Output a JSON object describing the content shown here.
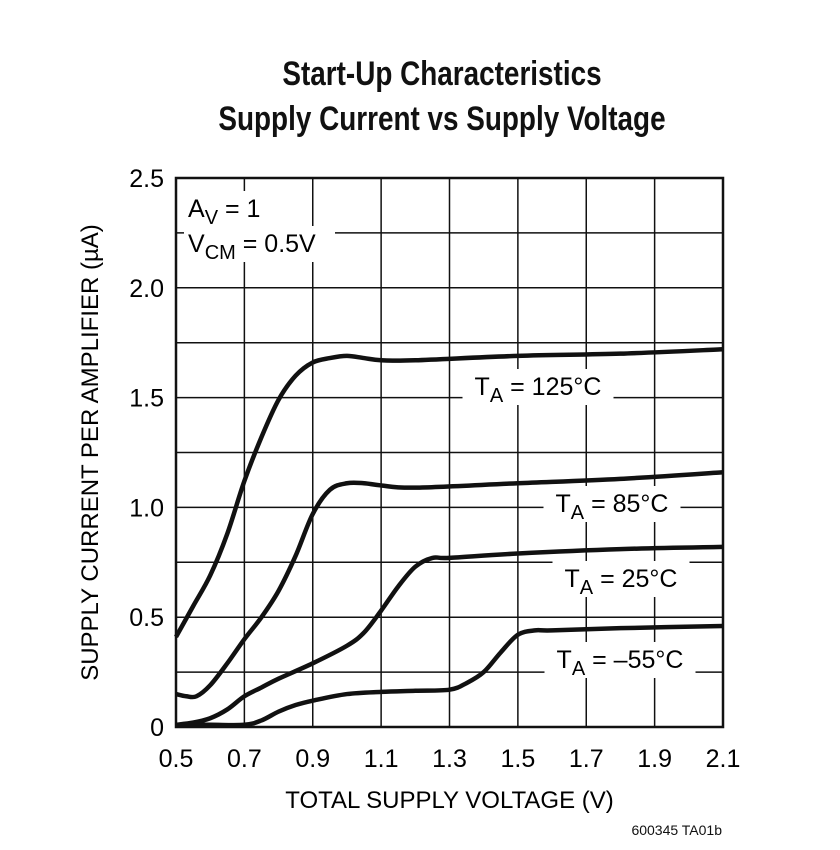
{
  "chart_data": {
    "type": "line",
    "title": "Start-Up Characteristics",
    "subtitle": "Supply Current vs Supply Voltage",
    "xlabel": "TOTAL SUPPLY VOLTAGE (V)",
    "ylabel": "SUPPLY CURRENT PER AMPLIFIER (µA)",
    "xlim": [
      0.5,
      2.1
    ],
    "ylim": [
      0,
      2.5
    ],
    "xticks": [
      "0.5",
      "0.7",
      "0.9",
      "1.1",
      "1.3",
      "1.5",
      "1.7",
      "1.9",
      "2.1"
    ],
    "yticks": [
      "0",
      "0.5",
      "1.0",
      "1.5",
      "2.0",
      "2.5"
    ],
    "grid": true,
    "conditions": {
      "av": {
        "main": "A",
        "sub": "V",
        "rest": " = 1"
      },
      "vcm": {
        "main": "V",
        "sub": "CM",
        "rest": " = 0.5V"
      }
    },
    "series": [
      {
        "name": "TA = 125°C",
        "label": {
          "main": "T",
          "sub": "A",
          "rest": " = 125°C"
        },
        "x": [
          0.5,
          0.55,
          0.6,
          0.65,
          0.7,
          0.75,
          0.8,
          0.85,
          0.9,
          0.95,
          1.0,
          1.05,
          1.1,
          1.2,
          1.5,
          1.8,
          2.1
        ],
        "y": [
          0.41,
          0.55,
          0.69,
          0.88,
          1.12,
          1.32,
          1.49,
          1.6,
          1.66,
          1.68,
          1.69,
          1.68,
          1.67,
          1.67,
          1.69,
          1.7,
          1.72
        ]
      },
      {
        "name": "TA = 85°C",
        "label": {
          "main": "T",
          "sub": "A",
          "rest": " = 85°C"
        },
        "x": [
          0.5,
          0.53,
          0.56,
          0.6,
          0.65,
          0.7,
          0.75,
          0.8,
          0.85,
          0.9,
          0.95,
          1.0,
          1.05,
          1.1,
          1.2,
          1.5,
          1.8,
          2.1
        ],
        "y": [
          0.15,
          0.14,
          0.14,
          0.19,
          0.29,
          0.4,
          0.5,
          0.62,
          0.78,
          0.97,
          1.08,
          1.11,
          1.11,
          1.1,
          1.09,
          1.11,
          1.13,
          1.16
        ]
      },
      {
        "name": "TA = 25°C",
        "label": {
          "main": "T",
          "sub": "A",
          "rest": " = 25°C"
        },
        "x": [
          0.5,
          0.55,
          0.6,
          0.65,
          0.7,
          0.75,
          0.8,
          0.9,
          1.0,
          1.05,
          1.1,
          1.15,
          1.2,
          1.25,
          1.3,
          1.5,
          1.8,
          2.1
        ],
        "y": [
          0.01,
          0.02,
          0.04,
          0.08,
          0.14,
          0.18,
          0.22,
          0.29,
          0.37,
          0.43,
          0.53,
          0.64,
          0.73,
          0.77,
          0.77,
          0.79,
          0.81,
          0.82
        ]
      },
      {
        "name": "TA = -55°C",
        "label": {
          "main": "T",
          "sub": "A",
          "rest": " = –55°C"
        },
        "x": [
          0.5,
          0.6,
          0.7,
          0.75,
          0.8,
          0.85,
          0.9,
          1.0,
          1.1,
          1.2,
          1.3,
          1.35,
          1.4,
          1.45,
          1.5,
          1.55,
          1.6,
          1.8,
          2.1
        ],
        "y": [
          0.01,
          0.01,
          0.01,
          0.03,
          0.07,
          0.1,
          0.12,
          0.15,
          0.16,
          0.165,
          0.17,
          0.2,
          0.25,
          0.34,
          0.42,
          0.44,
          0.44,
          0.45,
          0.46
        ]
      }
    ]
  },
  "footer": "600345 TA01b"
}
